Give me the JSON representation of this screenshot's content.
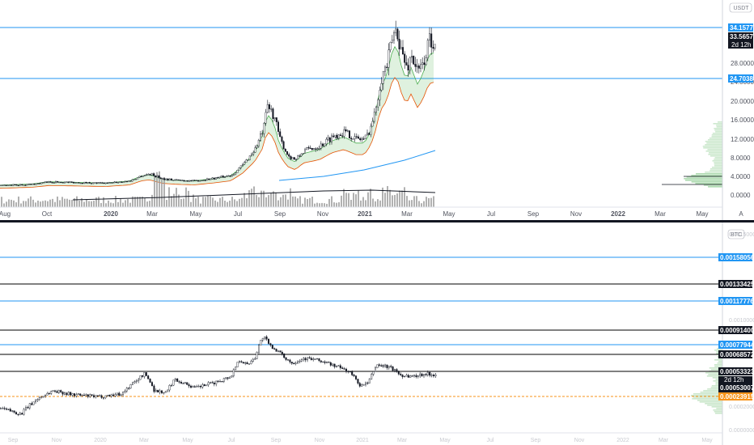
{
  "chart_data": [
    {
      "type": "candlestick",
      "pair": "USDT",
      "yticks": [
        "28.0000",
        "24.0000",
        "20.0000",
        "16.0000",
        "12.0000",
        "8.0000",
        "4.0000",
        "0.0000"
      ],
      "xticks": [
        "Aug",
        "Oct",
        "2020",
        "Mar",
        "May",
        "Jul",
        "Sep",
        "Nov",
        "2021",
        "Mar",
        "May",
        "Jul",
        "Sep",
        "Nov",
        "2022",
        "Mar",
        "May"
      ],
      "last_price": "33.5657",
      "countdown": "2d 12h",
      "hlines": [
        {
          "value": 34.1577,
          "label": "34.1577",
          "color": "#2196f3"
        },
        {
          "value": 24.7038,
          "label": "24.7038",
          "color": "#2196f3"
        }
      ],
      "approx_closes": [
        {
          "x": "2019-08",
          "y": 2.0
        },
        {
          "x": "2019-10",
          "y": 2.6
        },
        {
          "x": "2020-01",
          "y": 2.3
        },
        {
          "x": "2020-03",
          "y": 3.8
        },
        {
          "x": "2020-05",
          "y": 2.8
        },
        {
          "x": "2020-07",
          "y": 4.0
        },
        {
          "x": "2020-08",
          "y": 17.5
        },
        {
          "x": "2020-09",
          "y": 7.5
        },
        {
          "x": "2020-11",
          "y": 11.5
        },
        {
          "x": "2021-01",
          "y": 12.5
        },
        {
          "x": "2021-02",
          "y": 32.0
        },
        {
          "x": "2021-03",
          "y": 25.5
        },
        {
          "x": "2021-04",
          "y": 33.6
        }
      ],
      "footer_mark": "A"
    },
    {
      "type": "candlestick",
      "pair": "BTC",
      "yticks": [
        "0.00150000",
        "0.00100000",
        "0.00050000",
        "0.00020000",
        "0.00000000"
      ],
      "xticks": [
        "Sep",
        "Nov",
        "2020",
        "Mar",
        "May",
        "Jul",
        "Sep",
        "Nov",
        "2021",
        "Mar",
        "May",
        "Jul",
        "Sep",
        "Nov",
        "2022",
        "Mar",
        "May"
      ],
      "last_price": "0.00053007",
      "countdown": "2d 12h",
      "hlines": [
        {
          "value": 0.00158056,
          "label": "0.00158056",
          "color": "#2196f3"
        },
        {
          "value": 0.00133425,
          "label": "0.00133425",
          "color": "#000000"
        },
        {
          "value": 0.00117776,
          "label": "0.00117776",
          "color": "#2196f3"
        },
        {
          "value": 0.000914,
          "label": "0.00091400",
          "color": "#000000"
        },
        {
          "value": 0.00077944,
          "label": "0.00077944",
          "color": "#2196f3"
        },
        {
          "value": 0.00068572,
          "label": "0.00068572",
          "color": "#000000"
        },
        {
          "value": 0.00053323,
          "label": "0.00053323",
          "color": "#000000"
        },
        {
          "value": 0.00023915,
          "label": "0.00023915",
          "color": "#f7931a"
        }
      ],
      "approx_closes": [
        {
          "x": "2019-09",
          "y": 0.00015
        },
        {
          "x": "2019-11",
          "y": 0.0003
        },
        {
          "x": "2020-01",
          "y": 0.00025
        },
        {
          "x": "2020-03",
          "y": 0.0005
        },
        {
          "x": "2020-05",
          "y": 0.00035
        },
        {
          "x": "2020-07",
          "y": 0.00045
        },
        {
          "x": "2020-08",
          "y": 0.0017
        },
        {
          "x": "2020-09",
          "y": 0.0009
        },
        {
          "x": "2020-11",
          "y": 0.0008
        },
        {
          "x": "2021-01",
          "y": 0.00035
        },
        {
          "x": "2021-02",
          "y": 0.00075
        },
        {
          "x": "2021-03",
          "y": 0.0005
        },
        {
          "x": "2021-04",
          "y": 0.00053
        }
      ]
    }
  ]
}
